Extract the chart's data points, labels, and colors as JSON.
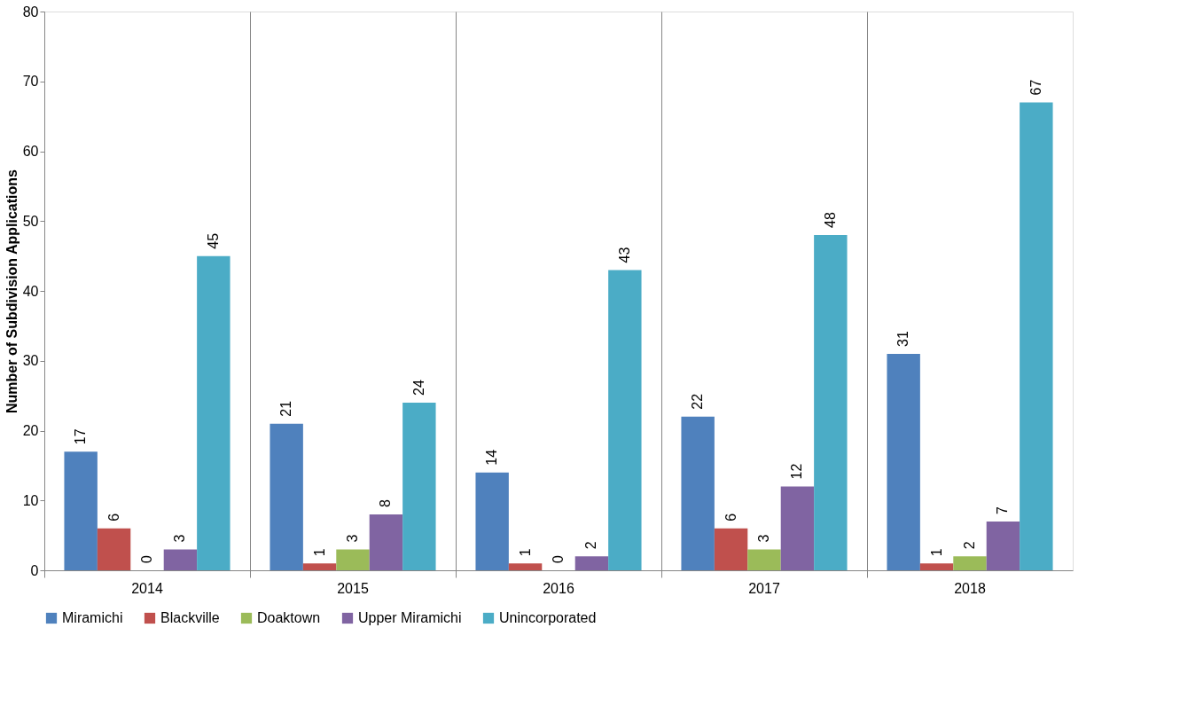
{
  "chart_data": {
    "type": "bar",
    "ylabel": "Number of Subdivision Applications",
    "categories": [
      "2014",
      "2015",
      "2016",
      "2017",
      "2018"
    ],
    "series": [
      {
        "name": "Miramichi",
        "color": "#4f81bd",
        "values": [
          17,
          21,
          14,
          22,
          31
        ]
      },
      {
        "name": "Blackville",
        "color": "#c0504d",
        "values": [
          6,
          1,
          1,
          6,
          1
        ]
      },
      {
        "name": "Doaktown",
        "color": "#9bbb59",
        "values": [
          0,
          3,
          0,
          3,
          2
        ]
      },
      {
        "name": "Upper Miramichi",
        "color": "#8064a2",
        "values": [
          3,
          8,
          2,
          12,
          7
        ]
      },
      {
        "name": "Unincorporated",
        "color": "#4bacc6",
        "values": [
          45,
          24,
          43,
          48,
          67
        ]
      }
    ],
    "ylim": [
      0,
      80
    ],
    "yticks": [
      0,
      10,
      20,
      30,
      40,
      50,
      60,
      70,
      80
    ],
    "grid": "x",
    "legend": "bottom",
    "data_labels": true
  }
}
